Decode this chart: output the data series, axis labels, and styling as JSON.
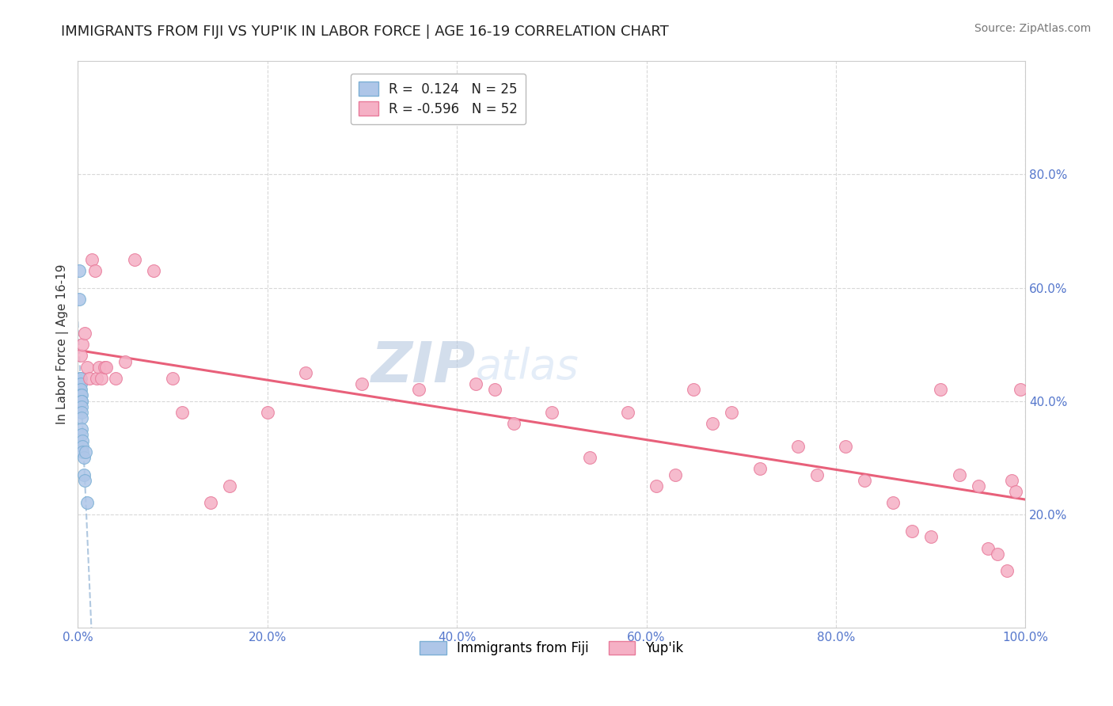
{
  "title": "IMMIGRANTS FROM FIJI VS YUP'IK IN LABOR FORCE | AGE 16-19 CORRELATION CHART",
  "source": "Source: ZipAtlas.com",
  "ylabel": "In Labor Force | Age 16-19",
  "xlim": [
    0.0,
    1.0
  ],
  "ylim": [
    0.0,
    1.0
  ],
  "xticks": [
    0.0,
    0.2,
    0.4,
    0.6,
    0.8,
    1.0
  ],
  "yticks": [
    0.2,
    0.4,
    0.6,
    0.8
  ],
  "xtick_labels": [
    "0.0%",
    "20.0%",
    "40.0%",
    "60.0%",
    "80.0%",
    "100.0%"
  ],
  "ytick_labels_right": [
    "20.0%",
    "40.0%",
    "60.0%",
    "80.0%"
  ],
  "fiji_color": "#aec6e8",
  "yupik_color": "#f5b0c5",
  "fiji_edge_color": "#7bafd4",
  "yupik_edge_color": "#e87a9a",
  "fiji_line_color": "#b0c8e0",
  "yupik_line_color": "#e8607a",
  "grid_color": "#d8d8d8",
  "tick_color": "#5577cc",
  "watermark_color": "#ccd8ec",
  "fiji_R": 0.124,
  "fiji_N": 25,
  "yupik_R": -0.596,
  "yupik_N": 52,
  "fiji_x": [
    0.001,
    0.001,
    0.002,
    0.002,
    0.002,
    0.003,
    0.003,
    0.003,
    0.003,
    0.004,
    0.004,
    0.004,
    0.004,
    0.004,
    0.004,
    0.004,
    0.004,
    0.005,
    0.005,
    0.005,
    0.006,
    0.006,
    0.007,
    0.008,
    0.01
  ],
  "fiji_y": [
    0.63,
    0.58,
    0.44,
    0.43,
    0.42,
    0.44,
    0.43,
    0.42,
    0.41,
    0.41,
    0.4,
    0.4,
    0.39,
    0.38,
    0.37,
    0.35,
    0.34,
    0.33,
    0.32,
    0.31,
    0.3,
    0.27,
    0.26,
    0.31,
    0.22
  ],
  "yupik_x": [
    0.003,
    0.005,
    0.007,
    0.01,
    0.012,
    0.015,
    0.018,
    0.02,
    0.022,
    0.025,
    0.028,
    0.03,
    0.04,
    0.05,
    0.06,
    0.08,
    0.1,
    0.11,
    0.14,
    0.16,
    0.2,
    0.24,
    0.3,
    0.36,
    0.42,
    0.44,
    0.46,
    0.5,
    0.54,
    0.58,
    0.61,
    0.63,
    0.65,
    0.67,
    0.69,
    0.72,
    0.76,
    0.78,
    0.81,
    0.83,
    0.86,
    0.88,
    0.9,
    0.91,
    0.93,
    0.95,
    0.96,
    0.97,
    0.98,
    0.985,
    0.99,
    0.995
  ],
  "yupik_y": [
    0.48,
    0.5,
    0.52,
    0.46,
    0.44,
    0.65,
    0.63,
    0.44,
    0.46,
    0.44,
    0.46,
    0.46,
    0.44,
    0.47,
    0.65,
    0.63,
    0.44,
    0.38,
    0.22,
    0.25,
    0.38,
    0.45,
    0.43,
    0.42,
    0.43,
    0.42,
    0.36,
    0.38,
    0.3,
    0.38,
    0.25,
    0.27,
    0.42,
    0.36,
    0.38,
    0.28,
    0.32,
    0.27,
    0.32,
    0.26,
    0.22,
    0.17,
    0.16,
    0.42,
    0.27,
    0.25,
    0.14,
    0.13,
    0.1,
    0.26,
    0.24,
    0.42
  ],
  "marker_size": 130,
  "background_color": "#ffffff",
  "title_fontsize": 13,
  "axis_label_fontsize": 11,
  "tick_fontsize": 11,
  "legend_fontsize": 12,
  "source_fontsize": 10,
  "watermark_fontsize": 52
}
